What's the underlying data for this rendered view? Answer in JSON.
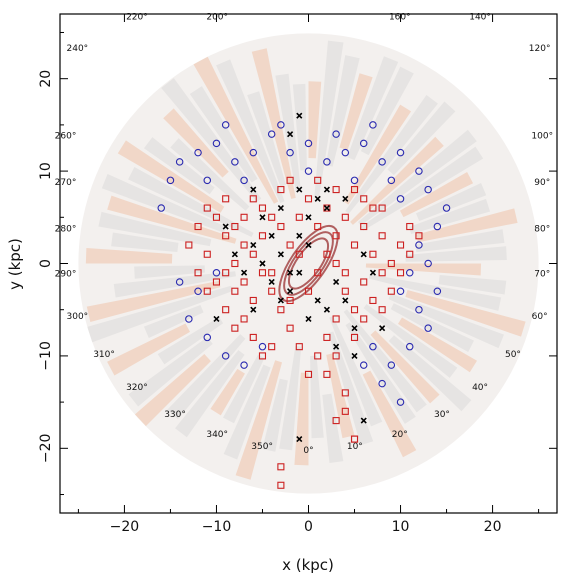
{
  "chart_data": {
    "type": "scatter",
    "title": "",
    "xlabel": "x (kpc)",
    "ylabel": "y (kpc)",
    "xlim": [
      -27,
      27
    ],
    "ylim": [
      -27,
      27
    ],
    "x_ticks": [
      -20,
      -10,
      0,
      10,
      20
    ],
    "y_ticks": [
      -20,
      -10,
      0,
      10,
      20
    ],
    "tick_labels_x": [
      "−20",
      "−10",
      "0",
      "10",
      "20"
    ],
    "tick_labels_y": [
      "−20",
      "−10",
      "0",
      "10",
      "20"
    ],
    "grid": false,
    "background_map": {
      "description_shape": "disk",
      "radius_kpc": 25,
      "colors": {
        "warm": "#f0a070",
        "cool": "#cfcfcf"
      }
    },
    "central_contours": {
      "center": [
        0,
        0
      ],
      "color": "#b06060",
      "ellipses": [
        {
          "a": 3.2,
          "b": 1.3,
          "angle_deg": 55
        },
        {
          "a": 4.0,
          "b": 1.6,
          "angle_deg": 55
        },
        {
          "a": 4.8,
          "b": 1.9,
          "angle_deg": 55
        }
      ]
    },
    "galactic_longitude_labels": [
      {
        "text": "0°",
        "lon": 0
      },
      {
        "text": "10°",
        "lon": 10
      },
      {
        "text": "20°",
        "lon": 20
      },
      {
        "text": "30°",
        "lon": 30
      },
      {
        "text": "40°",
        "lon": 40
      },
      {
        "text": "50°",
        "lon": 50
      },
      {
        "text": "60°",
        "lon": 60
      },
      {
        "text": "70°",
        "lon": 70
      },
      {
        "text": "80°",
        "lon": 80
      },
      {
        "text": "90°",
        "lon": 90
      },
      {
        "text": "100°",
        "lon": 100
      },
      {
        "text": "120°",
        "lon": 120
      },
      {
        "text": "140°",
        "lon": 140
      },
      {
        "text": "160°",
        "lon": 160
      },
      {
        "text": "200°",
        "lon": 200
      },
      {
        "text": "220°",
        "lon": 220
      },
      {
        "text": "240°",
        "lon": 240
      },
      {
        "text": "260°",
        "lon": 260
      },
      {
        "text": "270°",
        "lon": 270
      },
      {
        "text": "280°",
        "lon": 280
      },
      {
        "text": "290°",
        "lon": 290
      },
      {
        "text": "300°",
        "lon": 300
      },
      {
        "text": "310°",
        "lon": 310
      },
      {
        "text": "320°",
        "lon": 320
      },
      {
        "text": "330°",
        "lon": 330
      },
      {
        "text": "340°",
        "lon": 340
      },
      {
        "text": "350°",
        "lon": 350
      }
    ],
    "sun_position": [
      0,
      8.5
    ],
    "series": [
      {
        "marker": "square",
        "color": "#cc2020",
        "points": [
          [
            -9,
            3
          ],
          [
            -8,
            4
          ],
          [
            -7,
            2
          ],
          [
            -8,
            0
          ],
          [
            -9,
            -1
          ],
          [
            -7,
            -2
          ],
          [
            -6,
            1
          ],
          [
            -5,
            3
          ],
          [
            -4,
            5
          ],
          [
            -3,
            4
          ],
          [
            -2,
            2
          ],
          [
            -1,
            5
          ],
          [
            1,
            4
          ],
          [
            2,
            6
          ],
          [
            3,
            3
          ],
          [
            4,
            5
          ],
          [
            5,
            2
          ],
          [
            6,
            4
          ],
          [
            7,
            1
          ],
          [
            8,
            3
          ],
          [
            9,
            0
          ],
          [
            10,
            2
          ],
          [
            6,
            -2
          ],
          [
            7,
            -4
          ],
          [
            5,
            -5
          ],
          [
            4,
            -3
          ],
          [
            3,
            -6
          ],
          [
            2,
            -8
          ],
          [
            1,
            -10
          ],
          [
            0,
            -12
          ],
          [
            -1,
            -9
          ],
          [
            -2,
            -7
          ],
          [
            -3,
            -5
          ],
          [
            -4,
            -3
          ],
          [
            -5,
            -1
          ],
          [
            -6,
            -4
          ],
          [
            -7,
            -6
          ],
          [
            -8,
            -3
          ],
          [
            -10,
            -2
          ],
          [
            -11,
            1
          ],
          [
            -12,
            4
          ],
          [
            -10,
            5
          ],
          [
            -9,
            7
          ],
          [
            -6,
            7
          ],
          [
            -3,
            8
          ],
          [
            0,
            7
          ],
          [
            3,
            8
          ],
          [
            6,
            7
          ],
          [
            8,
            6
          ],
          [
            11,
            4
          ],
          [
            2,
            -12
          ],
          [
            3,
            -10
          ],
          [
            5,
            -8
          ],
          [
            6,
            -6
          ],
          [
            8,
            -5
          ],
          [
            4,
            -14
          ],
          [
            3,
            -17
          ],
          [
            4,
            -16
          ],
          [
            5,
            -19
          ],
          [
            -3,
            -22
          ],
          [
            -3,
            -24
          ],
          [
            5,
            -19
          ],
          [
            -2,
            -4
          ],
          [
            -4,
            -1
          ],
          [
            0,
            -3
          ],
          [
            1,
            -1
          ],
          [
            -1,
            1
          ],
          [
            2,
            1
          ],
          [
            3,
            0
          ],
          [
            4,
            -1
          ],
          [
            -6,
            -8
          ],
          [
            -5,
            -10
          ],
          [
            -4,
            -9
          ],
          [
            -8,
            -7
          ],
          [
            -9,
            -5
          ],
          [
            -11,
            -3
          ],
          [
            -12,
            -1
          ],
          [
            8,
            -1
          ],
          [
            9,
            -3
          ],
          [
            10,
            -1
          ],
          [
            11,
            1
          ],
          [
            12,
            3
          ],
          [
            7,
            6
          ],
          [
            5,
            8
          ],
          [
            -7,
            5
          ],
          [
            -11,
            6
          ],
          [
            -13,
            2
          ],
          [
            -5,
            6
          ],
          [
            -2,
            9
          ],
          [
            1,
            9
          ]
        ]
      },
      {
        "marker": "circle",
        "color": "#2a2ab0",
        "points": [
          [
            -14,
            11
          ],
          [
            -12,
            12
          ],
          [
            -10,
            13
          ],
          [
            -8,
            11
          ],
          [
            -6,
            12
          ],
          [
            -4,
            14
          ],
          [
            -2,
            12
          ],
          [
            0,
            13
          ],
          [
            2,
            11
          ],
          [
            4,
            12
          ],
          [
            6,
            13
          ],
          [
            8,
            11
          ],
          [
            10,
            12
          ],
          [
            12,
            10
          ],
          [
            -15,
            9
          ],
          [
            -11,
            9
          ],
          [
            -7,
            9
          ],
          [
            5,
            9
          ],
          [
            9,
            9
          ],
          [
            13,
            8
          ],
          [
            -10,
            -1
          ],
          [
            -12,
            -3
          ],
          [
            -13,
            -6
          ],
          [
            -11,
            -8
          ],
          [
            -9,
            -10
          ],
          [
            10,
            -3
          ],
          [
            12,
            -5
          ],
          [
            13,
            -7
          ],
          [
            11,
            -9
          ],
          [
            9,
            -11
          ],
          [
            12,
            2
          ],
          [
            14,
            4
          ],
          [
            13,
            0
          ],
          [
            11,
            -1
          ],
          [
            7,
            -9
          ],
          [
            8,
            -13
          ],
          [
            10,
            -15
          ],
          [
            6,
            -11
          ],
          [
            -5,
            -9
          ],
          [
            -7,
            -11
          ],
          [
            3,
            14
          ],
          [
            -3,
            15
          ],
          [
            15,
            6
          ],
          [
            -16,
            6
          ],
          [
            10,
            7
          ],
          [
            -9,
            15
          ],
          [
            7,
            15
          ],
          [
            14,
            -3
          ],
          [
            -14,
            -2
          ],
          [
            0,
            10
          ]
        ]
      },
      {
        "marker": "cross",
        "color": "#000000",
        "points": [
          [
            -5,
            5
          ],
          [
            -4,
            3
          ],
          [
            -3,
            1
          ],
          [
            -2,
            -1
          ],
          [
            -2,
            -3
          ],
          [
            -3,
            -4
          ],
          [
            -4,
            -2
          ],
          [
            -5,
            0
          ],
          [
            -6,
            2
          ],
          [
            -1,
            3
          ],
          [
            0,
            5
          ],
          [
            1,
            7
          ],
          [
            -1,
            8
          ],
          [
            2,
            8
          ],
          [
            3,
            -2
          ],
          [
            4,
            -4
          ],
          [
            2,
            -5
          ],
          [
            5,
            -7
          ],
          [
            3,
            -9
          ],
          [
            0,
            -6
          ],
          [
            -6,
            -5
          ],
          [
            -7,
            -1
          ],
          [
            -8,
            1
          ],
          [
            6,
            1
          ],
          [
            7,
            -1
          ],
          [
            -10,
            -6
          ],
          [
            -2,
            14
          ],
          [
            -1,
            16
          ],
          [
            5,
            -10
          ],
          [
            6,
            -17
          ],
          [
            -1,
            -19
          ],
          [
            2,
            6
          ],
          [
            -3,
            6
          ],
          [
            4,
            7
          ],
          [
            -6,
            8
          ],
          [
            -9,
            4
          ],
          [
            8,
            -7
          ],
          [
            1,
            -4
          ],
          [
            -1,
            -1
          ],
          [
            0,
            2
          ]
        ]
      }
    ]
  }
}
